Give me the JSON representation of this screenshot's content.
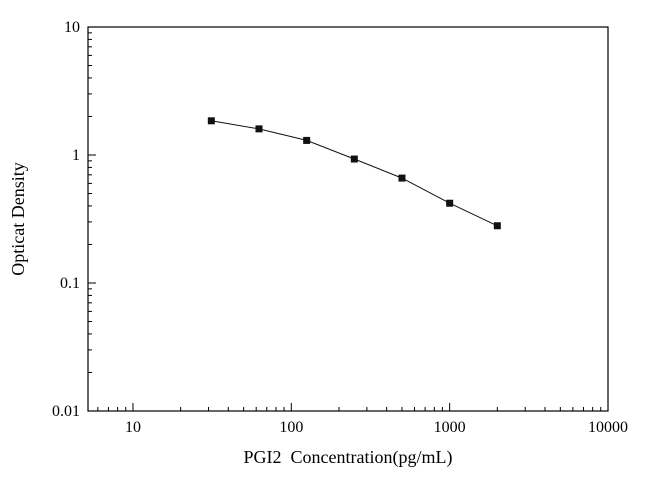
{
  "figure": {
    "xlabel": "PGI2  Concentration(pg/mL)",
    "ylabel": "Opticat Density"
  },
  "chart_data": {
    "type": "line",
    "x": [
      31.25,
      62.5,
      125,
      250,
      500,
      1000,
      2000
    ],
    "y": [
      1.85,
      1.6,
      1.3,
      0.93,
      0.66,
      0.42,
      0.28
    ],
    "xlabel": "PGI2  Concentration(pg/mL)",
    "ylabel": "Opticat Density",
    "xscale": "log",
    "yscale": "log",
    "xlim": [
      5.2,
      10000
    ],
    "ylim": [
      0.01,
      10
    ],
    "x_tick_values": [
      10,
      100,
      1000,
      10000
    ],
    "x_tick_labels": [
      "10",
      "100",
      "1000",
      "10000"
    ],
    "y_tick_values": [
      0.01,
      0.1,
      1,
      10
    ],
    "y_tick_labels": [
      "0.01",
      "0.1",
      "1",
      "10"
    ],
    "grid": false,
    "legend_position": "none",
    "marker": "filled-square",
    "marker_size": 7,
    "marker_color": "#111111",
    "line_color": "#111111",
    "plot_background": "#ffffff",
    "border_color": "#000000"
  }
}
